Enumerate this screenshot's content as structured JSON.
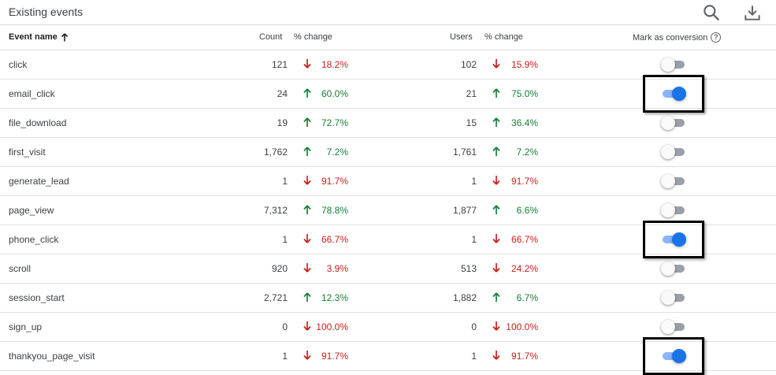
{
  "header": {
    "title": "Existing events",
    "icons": [
      "search-icon",
      "download-icon"
    ]
  },
  "columns": {
    "event_name": "Event name",
    "count": "Count",
    "pct_change_count": "% change",
    "users": "Users",
    "pct_change_users": "% change",
    "mark_as_conversion": "Mark as conversion",
    "help": "?"
  },
  "colors": {
    "up": "#188038",
    "down": "#c5221f",
    "toggle_on": "#1a73e8"
  },
  "rows": [
    {
      "name": "click",
      "count": "121",
      "count_dir": "down",
      "count_pct": "18.2%",
      "users": "102",
      "users_dir": "down",
      "users_pct": "15.9%",
      "conversion": false
    },
    {
      "name": "email_click",
      "count": "24",
      "count_dir": "up",
      "count_pct": "60.0%",
      "users": "21",
      "users_dir": "up",
      "users_pct": "75.0%",
      "conversion": true
    },
    {
      "name": "file_download",
      "count": "19",
      "count_dir": "up",
      "count_pct": "72.7%",
      "users": "15",
      "users_dir": "up",
      "users_pct": "36.4%",
      "conversion": false
    },
    {
      "name": "first_visit",
      "count": "1,762",
      "count_dir": "up",
      "count_pct": "7.2%",
      "users": "1,761",
      "users_dir": "up",
      "users_pct": "7.2%",
      "conversion": false
    },
    {
      "name": "generate_lead",
      "count": "1",
      "count_dir": "down",
      "count_pct": "91.7%",
      "users": "1",
      "users_dir": "down",
      "users_pct": "91.7%",
      "conversion": false
    },
    {
      "name": "page_view",
      "count": "7,312",
      "count_dir": "up",
      "count_pct": "78.8%",
      "users": "1,877",
      "users_dir": "up",
      "users_pct": "6.6%",
      "conversion": false
    },
    {
      "name": "phone_click",
      "count": "1",
      "count_dir": "down",
      "count_pct": "66.7%",
      "users": "1",
      "users_dir": "down",
      "users_pct": "66.7%",
      "conversion": true
    },
    {
      "name": "scroll",
      "count": "920",
      "count_dir": "down",
      "count_pct": "3.9%",
      "users": "513",
      "users_dir": "down",
      "users_pct": "24.2%",
      "conversion": false
    },
    {
      "name": "session_start",
      "count": "2,721",
      "count_dir": "up",
      "count_pct": "12.3%",
      "users": "1,882",
      "users_dir": "up",
      "users_pct": "6.7%",
      "conversion": false
    },
    {
      "name": "sign_up",
      "count": "0",
      "count_dir": "down",
      "count_pct": "100.0%",
      "users": "0",
      "users_dir": "down",
      "users_pct": "100.0%",
      "conversion": false
    },
    {
      "name": "thankyou_page_visit",
      "count": "1",
      "count_dir": "down",
      "count_pct": "91.7%",
      "users": "1",
      "users_dir": "down",
      "users_pct": "91.7%",
      "conversion": true
    }
  ]
}
